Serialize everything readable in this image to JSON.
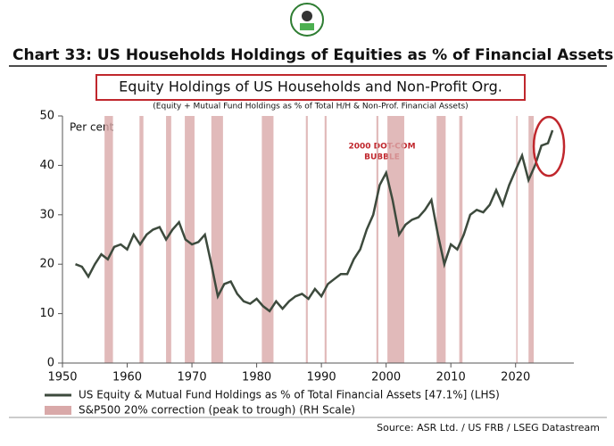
{
  "chart_data": {
    "type": "line",
    "header": "Chart 33: US Households Holdings of Equities as % of Financial Assets",
    "title": "Equity Holdings of US Households and Non-Profit Org.",
    "subtitle": "(Equity + Mutual Fund Holdings as % of Total H/H & Non-Prof. Financial Assets)",
    "y_label": "Per cent",
    "annotation": [
      "2000 DOT-COM",
      "BUBBLE"
    ],
    "source": "Source: ASR Ltd. / US FRB / LSEG Datastream",
    "xlim": [
      1950,
      2029
    ],
    "ylim": [
      0,
      50
    ],
    "xticks": [
      1950,
      1960,
      1970,
      1980,
      1990,
      2000,
      2010,
      2020
    ],
    "yticks": [
      0,
      10,
      20,
      30,
      40,
      50
    ],
    "series": [
      {
        "name": "US Equity & Mutual Fund Holdings as % of Total Financial Assets  [47.1%] (LHS)",
        "color": "#3d4a3d",
        "x": [
          1952,
          1953,
          1954,
          1955,
          1956,
          1957,
          1958,
          1959,
          1960,
          1961,
          1962,
          1963,
          1964,
          1965,
          1966,
          1967,
          1968,
          1969,
          1970,
          1971,
          1972,
          1973,
          1974,
          1975,
          1976,
          1977,
          1978,
          1979,
          1980,
          1981,
          1982,
          1983,
          1984,
          1985,
          1986,
          1987,
          1988,
          1989,
          1990,
          1991,
          1992,
          1993,
          1994,
          1995,
          1996,
          1997,
          1998,
          1999,
          2000,
          2001,
          2002,
          2003,
          2004,
          2005,
          2006,
          2007,
          2008,
          2009,
          2010,
          2011,
          2012,
          2013,
          2014,
          2015,
          2016,
          2017,
          2018,
          2019,
          2020,
          2021,
          2022,
          2023,
          2024,
          2025,
          2025.7
        ],
        "values": [
          20,
          19.5,
          17.5,
          20,
          22,
          21,
          23.5,
          24,
          23,
          26,
          24,
          26,
          27,
          27.5,
          25,
          27,
          28.5,
          25,
          24,
          24.5,
          26,
          20,
          13.5,
          16,
          16.5,
          14,
          12.5,
          12,
          13,
          11.5,
          10.5,
          12.5,
          11,
          12.5,
          13.5,
          14,
          13,
          15,
          13.5,
          16,
          17,
          18,
          18,
          21,
          23,
          27,
          30,
          36,
          38.5,
          33,
          26,
          28,
          29,
          29.5,
          31,
          33,
          26,
          20,
          24,
          23,
          26,
          30,
          31,
          30.5,
          32,
          35,
          32,
          36,
          39,
          42,
          37,
          40,
          44,
          44.5,
          47.1
        ]
      }
    ],
    "bands": {
      "name": "S&P500 20% correction (peak to trough) (RH Scale)",
      "color": "#d9a9a9",
      "ranges": [
        [
          1956.5,
          1957.8
        ],
        [
          1961.9,
          1962.5
        ],
        [
          1966.0,
          1966.8
        ],
        [
          1968.9,
          1970.4
        ],
        [
          1973.0,
          1974.8
        ],
        [
          1980.8,
          1982.6
        ],
        [
          1987.6,
          1987.9
        ],
        [
          1990.5,
          1990.8
        ],
        [
          1998.5,
          1998.8
        ],
        [
          2000.2,
          2002.8
        ],
        [
          2007.8,
          2009.2
        ],
        [
          2011.3,
          2011.8
        ],
        [
          2020.1,
          2020.3
        ],
        [
          2022.0,
          2022.8
        ]
      ]
    }
  }
}
